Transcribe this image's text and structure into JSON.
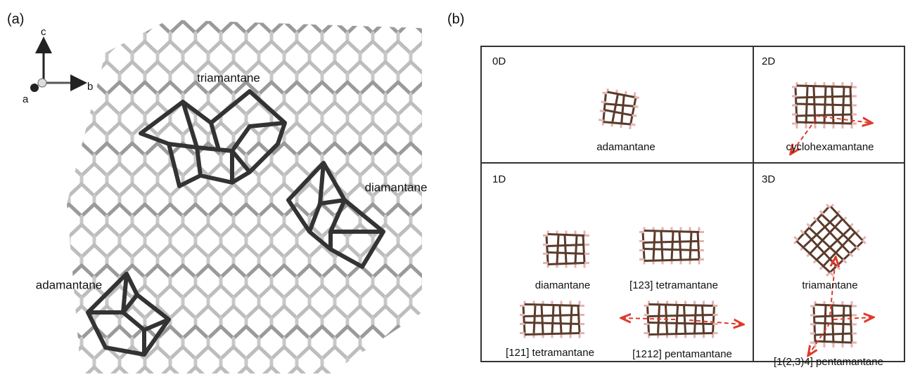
{
  "panel_a": {
    "label": "(a)",
    "axis_labels": [
      "c",
      "b",
      "a"
    ],
    "structures": [
      "triamantane",
      "diamantane",
      "adamantane"
    ]
  },
  "panel_b": {
    "label": "(b)",
    "cells": [
      {
        "dimension": "0D",
        "molecules": [
          "adamantane"
        ]
      },
      {
        "dimension": "2D",
        "molecules": [
          "cyclohexamantane"
        ]
      },
      {
        "dimension": "1D",
        "molecules": [
          "diamantane",
          "[123] tetramantane",
          "[121] tetramantane",
          "[1212] pentamantane"
        ]
      },
      {
        "dimension": "3D",
        "molecules": [
          "triamantane",
          "[1(2,3)4] pentamantane"
        ]
      }
    ]
  }
}
